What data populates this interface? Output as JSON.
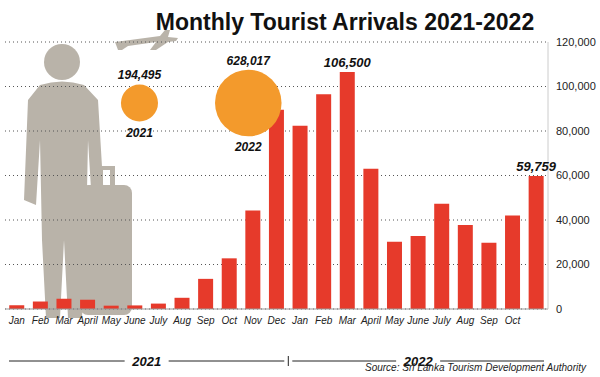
{
  "chart_data": {
    "type": "bar",
    "title": "Monthly Tourist Arrivals 2021-2022",
    "source": "Source: Sri Lanka Tourism Development Authority",
    "categories": [
      "Jan",
      "Feb",
      "Mar",
      "April",
      "May",
      "June",
      "July",
      "Aug",
      "Sep",
      "Oct",
      "Nov",
      "Dec",
      "Jan",
      "Feb",
      "Mar",
      "April",
      "May",
      "June",
      "July",
      "Aug",
      "Sep",
      "Oct",
      null
    ],
    "values": [
      1682,
      3366,
      4581,
      4168,
      1497,
      1614,
      2429,
      5040,
      13547,
      22771,
      44294,
      89506,
      82327,
      96507,
      106500,
      62980,
      30207,
      32856,
      47293,
      37760,
      29802,
      42026,
      59759
    ],
    "value_labels": [
      null,
      null,
      null,
      null,
      null,
      null,
      null,
      null,
      null,
      null,
      null,
      null,
      null,
      null,
      "106,500",
      null,
      null,
      null,
      null,
      null,
      null,
      null,
      "59,759"
    ],
    "color": "#e63a2b",
    "ylim": [
      0,
      120000
    ],
    "yticks": [
      0,
      {
        "value": 20000,
        "label": "20,000"
      },
      {
        "value": 40000,
        "label": "40,000"
      },
      {
        "value": 60000,
        "label": "60,000"
      },
      {
        "value": 80000,
        "label": "80,000"
      },
      {
        "value": 100000,
        "label": "100,000"
      },
      {
        "value": 120000,
        "label": "120,000"
      }
    ],
    "grid": true,
    "x_groups": [
      {
        "label": "2021",
        "count": 12
      },
      {
        "label": "2022",
        "count": 11
      }
    ],
    "totals": {
      "color": "#f39a2c",
      "items": [
        {
          "label": "2021",
          "value": 194495,
          "value_label": "194,495"
        },
        {
          "label": "2022",
          "value": 628017,
          "value_label": "628,017"
        }
      ]
    }
  }
}
